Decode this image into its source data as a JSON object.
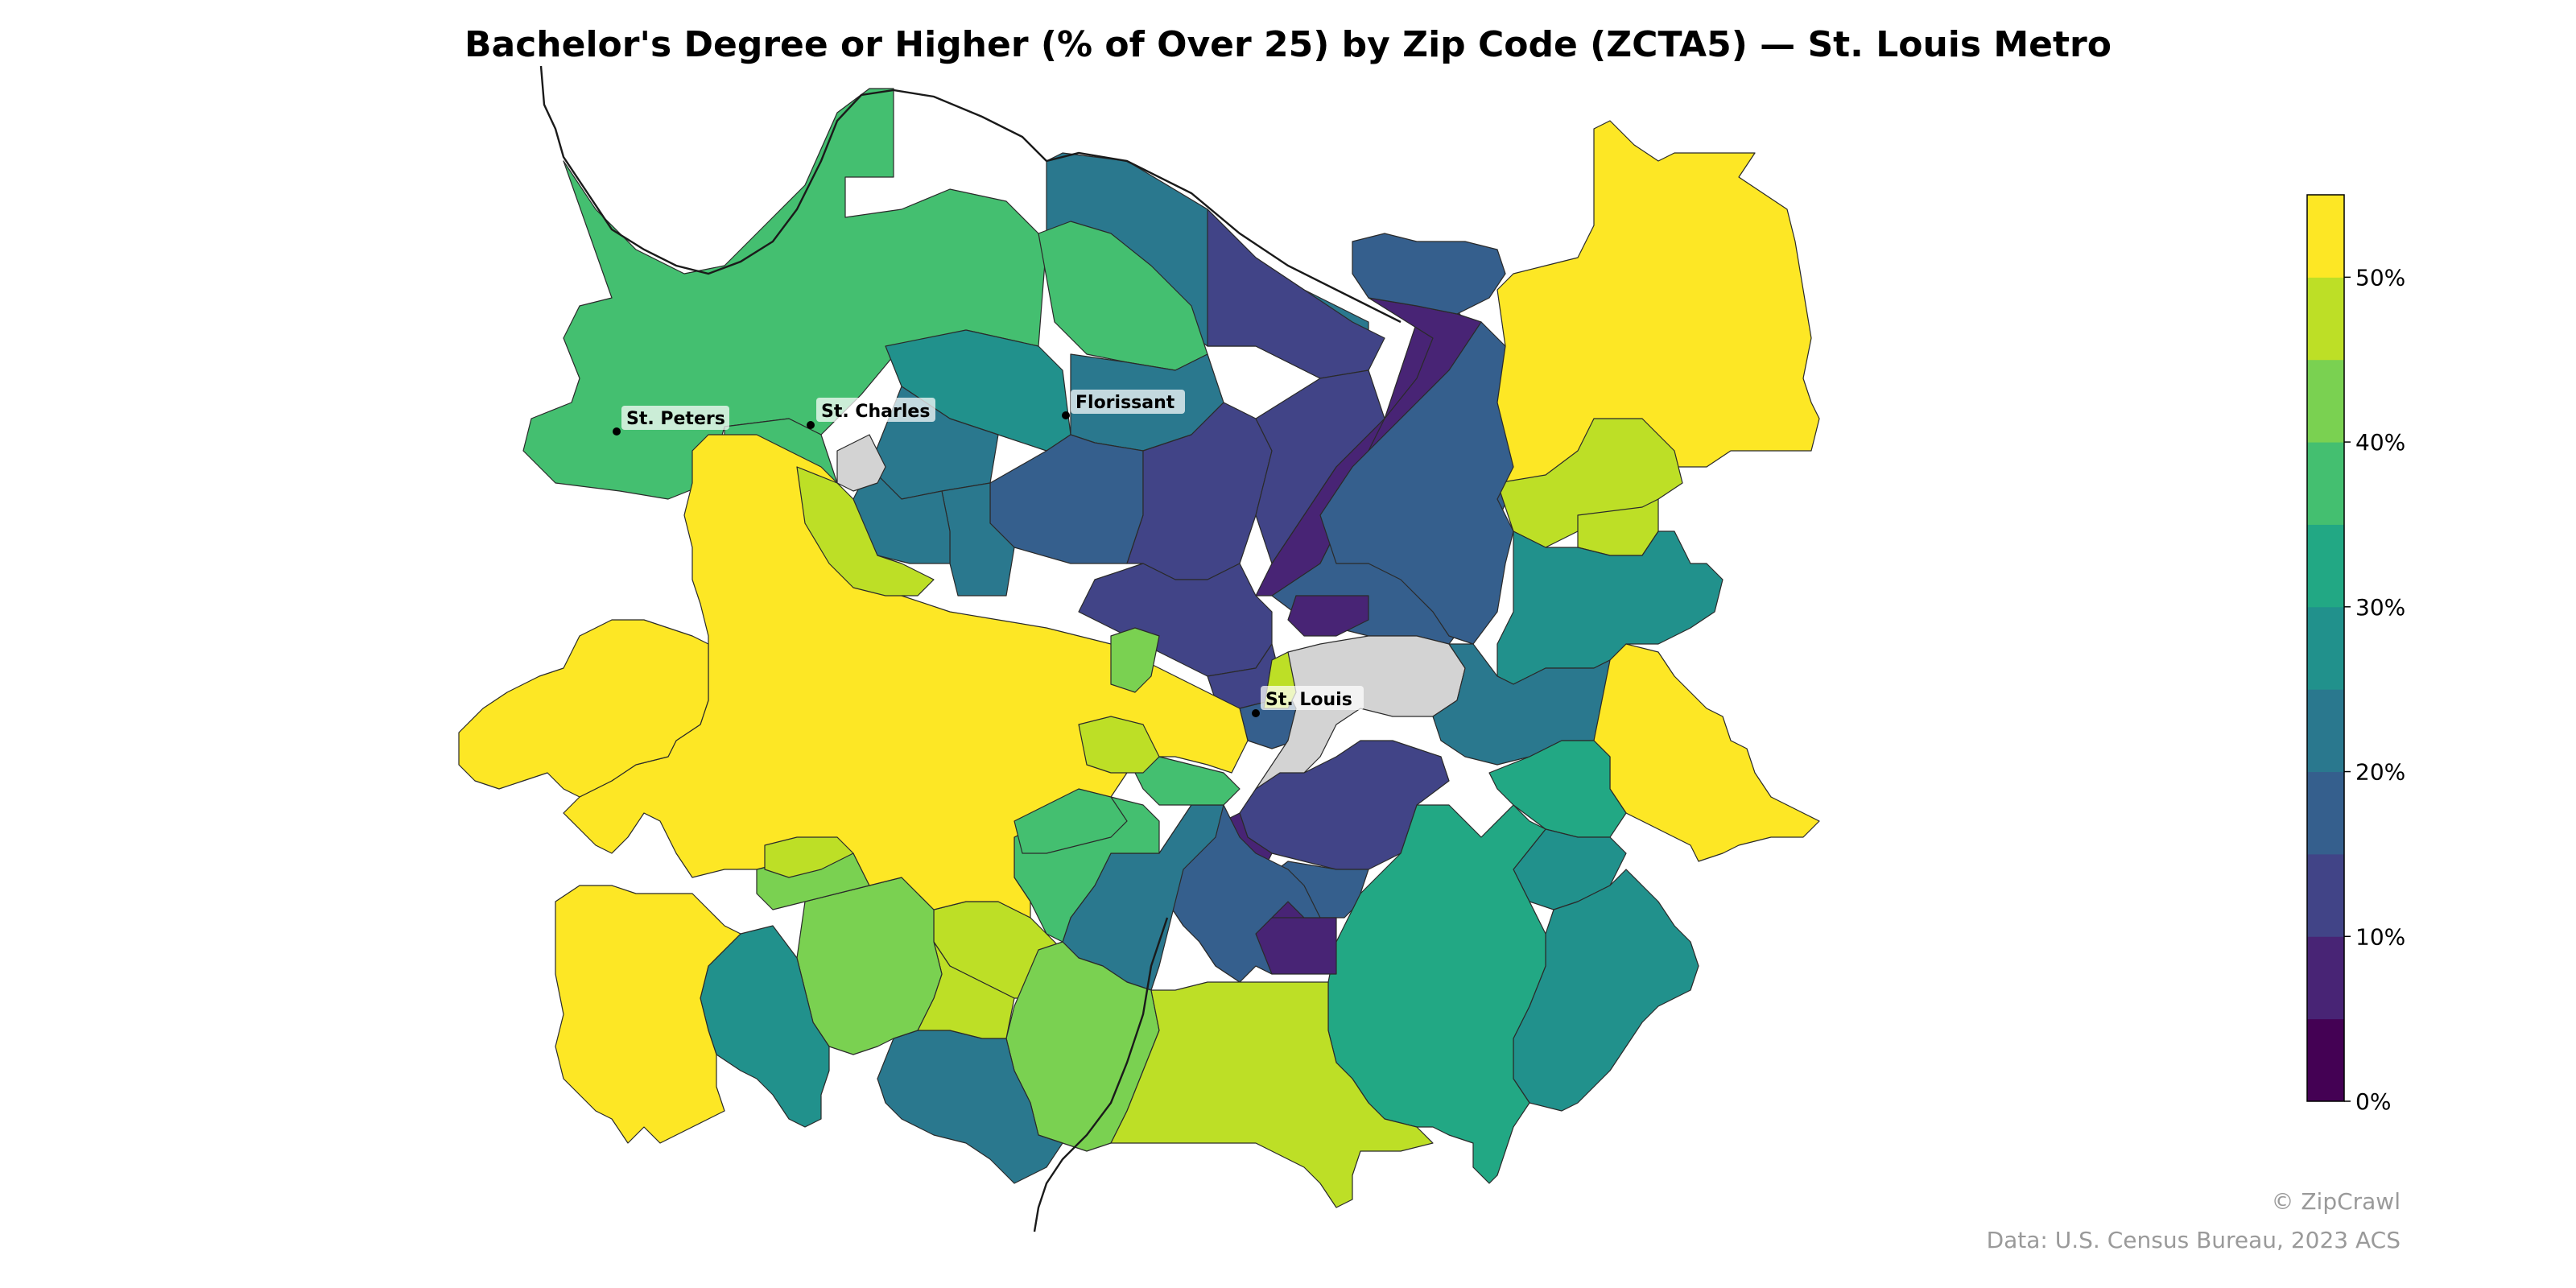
{
  "title": "Bachelor's Degree or Higher (% of Over 25) by Zip Code (ZCTA5) — St. Louis Metro",
  "credit": "© ZipCrawl",
  "source": "Data: U.S. Census Bureau, 2023 ACS",
  "colorbar": {
    "ticks": [
      "0%",
      "10%",
      "20%",
      "30%",
      "40%",
      "50%"
    ],
    "bins": [
      "#440154",
      "#482475",
      "#414487",
      "#355f8d",
      "#2a788e",
      "#21918c",
      "#22a884",
      "#44bf70",
      "#7ad151",
      "#bddf26",
      "#fde725"
    ],
    "no_data_color": "#d3d3d3"
  },
  "places": [
    {
      "name": "St. Peters"
    },
    {
      "name": "St. Charles"
    },
    {
      "name": "Florissant"
    },
    {
      "name": "St. Louis"
    }
  ]
}
